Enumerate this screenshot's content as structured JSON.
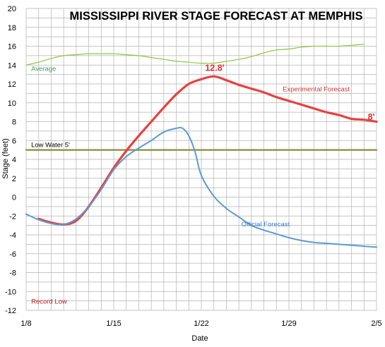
{
  "chart_data": {
    "type": "line",
    "title": "MISSISSIPPI RIVER STAGE FORECAST AT MEMPHIS",
    "xlabel": "Date",
    "ylabel": "Stage (feet)",
    "ylim": [
      -12,
      20
    ],
    "xlim": [
      0,
      28
    ],
    "grid": true,
    "y_ticks": [
      20,
      18,
      16,
      14,
      12,
      10,
      8,
      6,
      4,
      2,
      0,
      -2,
      -4,
      -6,
      -8,
      -10,
      -12
    ],
    "x_ticks": [
      {
        "x": 0,
        "label": "1/8"
      },
      {
        "x": 7,
        "label": "1/15"
      },
      {
        "x": 14,
        "label": "1/22"
      },
      {
        "x": 21,
        "label": "1/29"
      },
      {
        "x": 28,
        "label": "2/5"
      }
    ],
    "series": [
      {
        "name": "Average",
        "color": "#8cc63f",
        "x": [
          0,
          1,
          2,
          3,
          4,
          5,
          6,
          7,
          8,
          9,
          10,
          11,
          12,
          13,
          14,
          15,
          16,
          17,
          18,
          19,
          20,
          21,
          22,
          23,
          24,
          25,
          26,
          27
        ],
        "values": [
          14.0,
          14.3,
          14.7,
          15.0,
          15.1,
          15.2,
          15.2,
          15.2,
          15.1,
          15.0,
          14.8,
          14.6,
          14.4,
          14.3,
          14.2,
          14.2,
          14.4,
          14.6,
          14.9,
          15.3,
          15.6,
          15.7,
          15.9,
          16.0,
          16.0,
          16.0,
          16.1,
          16.2
        ]
      },
      {
        "name": "Experimental Forecast",
        "color": "#e8413f",
        "x": [
          1,
          2,
          3,
          4,
          5,
          6,
          7,
          8,
          9,
          10,
          11,
          12,
          13,
          14,
          15,
          16,
          17,
          18,
          19,
          20,
          21,
          22,
          23,
          24,
          25,
          26,
          27,
          28
        ],
        "values": [
          -2.3,
          -2.7,
          -2.9,
          -2.5,
          -1.0,
          1.0,
          3.1,
          4.9,
          6.5,
          8.0,
          9.5,
          10.9,
          12.0,
          12.5,
          12.8,
          12.4,
          11.9,
          11.5,
          11.1,
          10.6,
          10.2,
          9.8,
          9.4,
          9.0,
          8.7,
          8.3,
          8.2,
          8.0
        ]
      },
      {
        "name": "Official Forecast",
        "color": "#5b9bd5",
        "x": [
          0,
          1,
          2,
          3,
          4,
          5,
          6,
          7,
          8,
          9,
          10,
          11,
          12,
          12.5,
          13,
          13.5,
          14,
          15,
          16,
          17,
          18,
          19,
          20,
          21,
          22,
          23,
          24,
          25,
          26,
          27,
          28
        ],
        "values": [
          -1.8,
          -2.4,
          -2.8,
          -2.9,
          -2.3,
          -1.0,
          0.8,
          2.9,
          4.3,
          5.2,
          6.0,
          6.9,
          7.3,
          7.3,
          6.5,
          4.8,
          2.3,
          0.1,
          -1.2,
          -2.1,
          -3.0,
          -3.5,
          -3.9,
          -4.3,
          -4.6,
          -4.8,
          -4.9,
          -5.0,
          -5.1,
          -5.2,
          -5.3
        ]
      },
      {
        "name": "Low Water 5'",
        "color": "#8f8a3a",
        "x": [
          0,
          28
        ],
        "values": [
          5,
          5
        ]
      }
    ],
    "annotations": [
      {
        "text": "Average",
        "x": 0.4,
        "y": 13.4,
        "color": "#3aa35a"
      },
      {
        "text": "12.8'",
        "x": 14.3,
        "y": 13.4,
        "color": "#e0302f"
      },
      {
        "text": "Experimental Forecast",
        "x": 20.5,
        "y": 11.2,
        "color": "#e0302f"
      },
      {
        "text": "8'",
        "x": 27.3,
        "y": 8.2,
        "color": "#e0302f"
      },
      {
        "text": "Low Water 5'",
        "x": 0.4,
        "y": 5.3,
        "color": "#000000"
      },
      {
        "text": "Official Forecast",
        "x": 17.2,
        "y": -3.1,
        "color": "#3b7fd0"
      },
      {
        "text": "Record Low",
        "x": 0.4,
        "y": -11.3,
        "color": "#c01c1c"
      }
    ]
  }
}
